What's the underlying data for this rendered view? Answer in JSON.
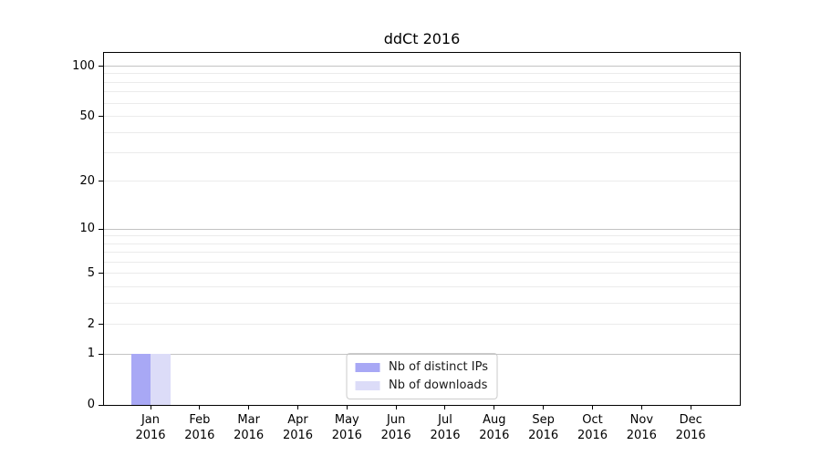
{
  "chart_data": {
    "type": "bar",
    "title": "ddCt 2016",
    "xlabel": "",
    "ylabel": "",
    "categories": [
      "Jan",
      "Feb",
      "Mar",
      "Apr",
      "May",
      "Jun",
      "Jul",
      "Aug",
      "Sep",
      "Oct",
      "Nov",
      "Dec"
    ],
    "x_tick_second_line": "2016",
    "series": [
      {
        "name": "Nb of distinct IPs",
        "color": "#a8a8f5",
        "values": [
          1,
          0,
          0,
          0,
          0,
          0,
          0,
          0,
          0,
          0,
          0,
          0
        ]
      },
      {
        "name": "Nb of downloads",
        "color": "#dcdcf8",
        "values": [
          1,
          0,
          0,
          0,
          0,
          0,
          0,
          0,
          0,
          0,
          0,
          0
        ]
      }
    ],
    "yscale": "log1p",
    "ylim": [
      0,
      120
    ],
    "y_tick_values": [
      0,
      1,
      2,
      5,
      10,
      20,
      50,
      100
    ],
    "y_tick_labels": [
      "0",
      "1",
      "2",
      "5",
      "10",
      "20",
      "50",
      "100"
    ],
    "grid": "on",
    "grid_major_values": [
      1,
      10,
      100
    ],
    "grid_minor_values": [
      2,
      3,
      4,
      5,
      6,
      7,
      8,
      9,
      20,
      30,
      40,
      50,
      60,
      70,
      80,
      90
    ],
    "legend_position": "lower center",
    "frame": "box"
  },
  "colors": {
    "background": "#ffffff",
    "axis": "#000000",
    "grid_major": "#c3c3c3",
    "grid_minor": "#ebebeb",
    "legend_border": "#cccccc",
    "bar_distinct_ips": "#a8a8f5",
    "bar_downloads": "#dcdcf8"
  }
}
